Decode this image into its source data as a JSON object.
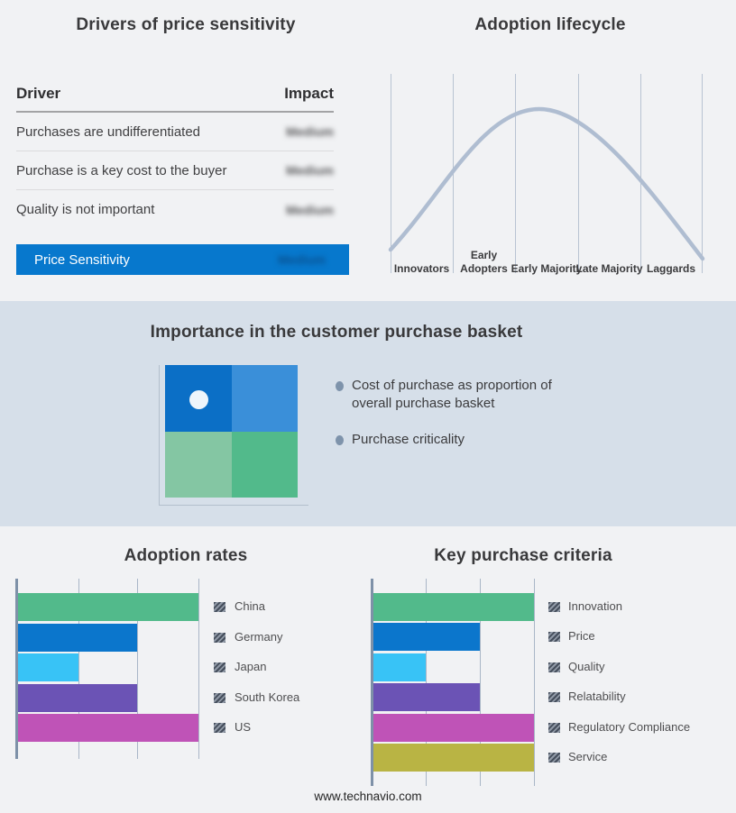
{
  "chart_data": [
    {
      "id": "drivers_of_price_sensitivity",
      "type": "table",
      "title": "Drivers of price sensitivity",
      "columns": [
        "Driver",
        "Impact"
      ],
      "rows": [
        {
          "driver": "Purchases are undifferentiated",
          "impact": "Medium",
          "impact_redacted": true
        },
        {
          "driver": "Purchase is a key cost to the buyer",
          "impact": "Medium",
          "impact_redacted": true
        },
        {
          "driver": "Quality is not important",
          "impact": "Medium",
          "impact_redacted": true
        }
      ],
      "highlight_row": {
        "driver": "Price Sensitivity",
        "impact": "Medium",
        "impact_redacted": true
      }
    },
    {
      "id": "adoption_lifecycle",
      "type": "line",
      "title": "Adoption lifecycle",
      "categories": [
        "Innovators",
        "Early Adopters",
        "Early Majority",
        "Late Majority",
        "Laggards"
      ],
      "curve_shape": "bell",
      "peak_category": "Early Majority",
      "grid": "vertical-only",
      "curve_color": "#afbdd1"
    },
    {
      "id": "adoption_rates",
      "type": "bar",
      "orientation": "horizontal",
      "title": "Adoption rates",
      "categories": [
        "China",
        "Germany",
        "Japan",
        "South Korea",
        "US"
      ],
      "values": [
        3,
        2,
        1,
        2,
        3
      ],
      "xlim": [
        0,
        3
      ],
      "grid": "vertical-only",
      "legend_position": "right",
      "colors": [
        "#52ba8b",
        "#0b76cc",
        "#38c3f6",
        "#6b53b5",
        "#bf53b7"
      ]
    },
    {
      "id": "key_purchase_criteria",
      "type": "bar",
      "orientation": "horizontal",
      "title": "Key purchase criteria",
      "categories": [
        "Innovation",
        "Price",
        "Quality",
        "Relatability",
        "Regulatory Compliance",
        "Service"
      ],
      "values": [
        3,
        2,
        1,
        2,
        3,
        3
      ],
      "xlim": [
        0,
        3
      ],
      "grid": "vertical-only",
      "legend_position": "right",
      "colors": [
        "#52ba8b",
        "#0b76cc",
        "#38c3f6",
        "#6b53b5",
        "#bf53b7",
        "#b9b444"
      ]
    }
  ],
  "basket_panel": {
    "title": "Importance in the customer purchase basket",
    "bullets": [
      "Cost of purchase as proportion of overall purchase basket",
      "Purchase criticality"
    ],
    "quadrant_colors": {
      "top_left": "#0b6fc6",
      "top_right": "#3a8fd9",
      "bottom_left": "#84c6a3",
      "bottom_right": "#52ba8b"
    },
    "dot_quadrant": "top-left"
  },
  "colors": {
    "page_bg": "#f1f2f4",
    "band_bg": "#d6dfe9",
    "highlight_blue": "#0778cd"
  },
  "footer": {
    "website": "www.technavio.com"
  }
}
